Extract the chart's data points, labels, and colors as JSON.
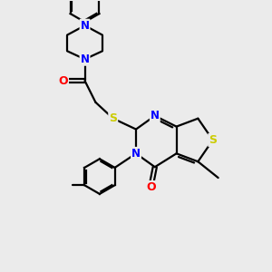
{
  "background_color": "#ebebeb",
  "bond_color": "#000000",
  "atom_colors": {
    "N": "#0000ff",
    "S": "#cccc00",
    "O": "#ff0000",
    "C": "#000000"
  },
  "line_width": 1.6
}
